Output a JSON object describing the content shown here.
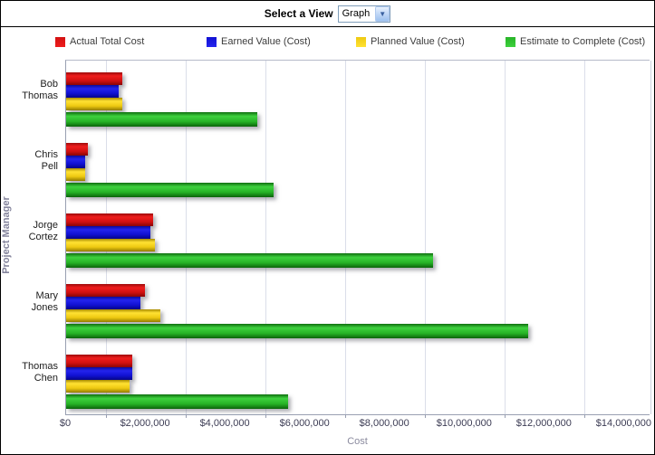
{
  "header": {
    "label": "Select a View",
    "dropdown_value": "Graph"
  },
  "legend": [
    {
      "label": "Actual Total Cost",
      "color": "#d31111"
    },
    {
      "label": "Earned Value (Cost)",
      "color": "#1b1bd6"
    },
    {
      "label": "Planned Value (Cost)",
      "color": "#eec911"
    },
    {
      "label": "Estimate to Complete (Cost)",
      "color": "#2fb42f"
    }
  ],
  "chart_data": {
    "type": "bar",
    "orientation": "horizontal",
    "title": "",
    "xlabel": "Cost",
    "ylabel": "Project Manager",
    "categories": [
      "Bob Thomas",
      "Chris Pell",
      "Jorge Cortez",
      "Mary Jones",
      "Thomas Chen"
    ],
    "series": [
      {
        "name": "Actual Total Cost",
        "color": "#d31111",
        "values": [
          1400000,
          540000,
          2170000,
          1980000,
          1650000
        ]
      },
      {
        "name": "Earned Value (Cost)",
        "color": "#1b1bd6",
        "values": [
          1310000,
          470000,
          2100000,
          1860000,
          1650000
        ]
      },
      {
        "name": "Planned Value (Cost)",
        "color": "#eec911",
        "values": [
          1400000,
          470000,
          2220000,
          2370000,
          1600000
        ]
      },
      {
        "name": "Estimate to Complete (Cost)",
        "color": "#2fb42f",
        "values": [
          4800000,
          5190000,
          9200000,
          11580000,
          5570000
        ]
      }
    ],
    "xlim": [
      0,
      14650000
    ],
    "x_tick_interval": 2000000,
    "x_tick_labels": [
      "$0",
      "$2,000,000",
      "$4,000,000",
      "$6,000,000",
      "$8,000,000",
      "$10,000,000",
      "$12,000,000",
      "$14,000,000"
    ],
    "gridlines_at": [
      1000000,
      3000000,
      5000000,
      7000000,
      9000000,
      11000000,
      13000000
    ],
    "grid": true,
    "legend_position": "top"
  }
}
